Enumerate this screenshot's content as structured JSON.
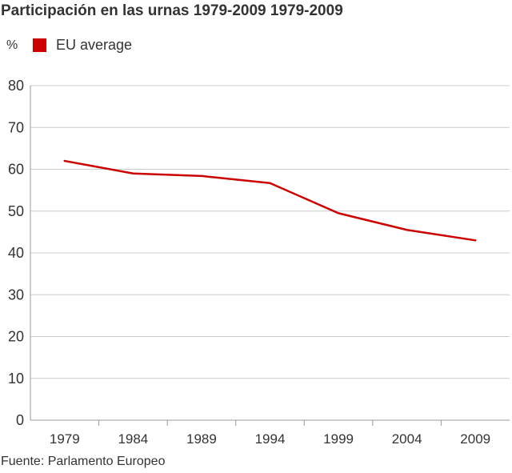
{
  "header": {
    "title": "Participación en las urnas 1979-2009 1979-2009",
    "unit": "%"
  },
  "legend": {
    "label": "EU average"
  },
  "source": "Fuente: Parlamento Europeo",
  "colors": {
    "series": "#cc0000",
    "grid": "#cccccc",
    "axis": "#999999",
    "text": "#333333"
  },
  "chart_data": {
    "type": "line",
    "title": "Participación en las urnas 1979-2009 1979-2009",
    "xlabel": "",
    "ylabel": "%",
    "categories": [
      "1979",
      "1984",
      "1989",
      "1994",
      "1999",
      "2004",
      "2009"
    ],
    "series": [
      {
        "name": "EU average",
        "values": [
          62.0,
          59.0,
          58.4,
          56.7,
          49.5,
          45.5,
          43.0
        ]
      }
    ],
    "yticks": [
      0,
      10,
      20,
      30,
      40,
      50,
      60,
      70,
      80
    ],
    "ylim": [
      0,
      80
    ],
    "grid": true,
    "legend_position": "top-left"
  }
}
